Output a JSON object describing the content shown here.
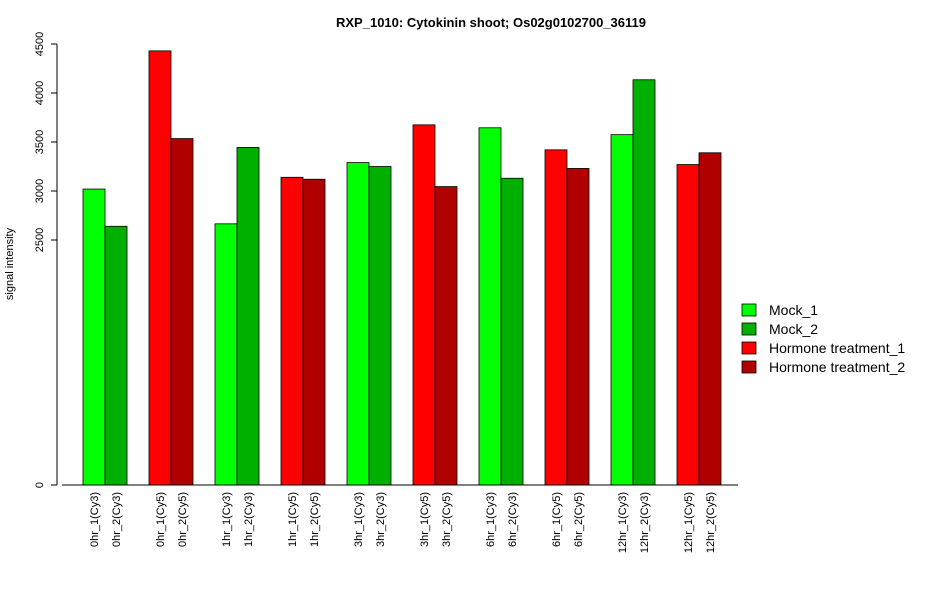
{
  "chart_data": {
    "type": "bar",
    "title": "RXP_1010: Cytokinin shoot; Os02g0102700_36119",
    "xlabel": "",
    "ylabel": "signal intensity",
    "y_ticks": [
      0,
      2500,
      3000,
      3500,
      4000,
      4500
    ],
    "y_tick_labels": [
      "0",
      "2500",
      "3000",
      "3500",
      "4000",
      "4500"
    ],
    "ylim": [
      0,
      4500
    ],
    "grid": false,
    "legend_position": "right",
    "colors": {
      "Mock_1": "#00ff00",
      "Mock_2": "#00b000",
      "Hormone treatment_1": "#ff0000",
      "Hormone treatment_2": "#b00000"
    },
    "legend": [
      "Mock_1",
      "Mock_2",
      "Hormone treatment_1",
      "Hormone treatment_2"
    ],
    "groups": [
      {
        "bars": [
          {
            "label": "0hr_1(Cy3)",
            "value": 3020,
            "series": "Mock_1"
          },
          {
            "label": "0hr_2(Cy3)",
            "value": 2640,
            "series": "Mock_2"
          }
        ]
      },
      {
        "bars": [
          {
            "label": "0hr_1(Cy5)",
            "value": 4430,
            "series": "Hormone treatment_1"
          },
          {
            "label": "0hr_2(Cy5)",
            "value": 3535,
            "series": "Hormone treatment_2"
          }
        ]
      },
      {
        "bars": [
          {
            "label": "1hr_1(Cy3)",
            "value": 2665,
            "series": "Mock_1"
          },
          {
            "label": "1hr_2(Cy3)",
            "value": 3445,
            "series": "Mock_2"
          }
        ]
      },
      {
        "bars": [
          {
            "label": "1hr_1(Cy5)",
            "value": 3140,
            "series": "Hormone treatment_1"
          },
          {
            "label": "1hr_2(Cy5)",
            "value": 3120,
            "series": "Hormone treatment_2"
          }
        ]
      },
      {
        "bars": [
          {
            "label": "3hr_1(Cy3)",
            "value": 3290,
            "series": "Mock_1"
          },
          {
            "label": "3hr_2(Cy3)",
            "value": 3250,
            "series": "Mock_2"
          }
        ]
      },
      {
        "bars": [
          {
            "label": "3hr_1(Cy5)",
            "value": 3675,
            "series": "Hormone treatment_1"
          },
          {
            "label": "3hr_2(Cy5)",
            "value": 3045,
            "series": "Hormone treatment_2"
          }
        ]
      },
      {
        "bars": [
          {
            "label": "6hr_1(Cy3)",
            "value": 3645,
            "series": "Mock_1"
          },
          {
            "label": "6hr_2(Cy3)",
            "value": 3130,
            "series": "Mock_2"
          }
        ]
      },
      {
        "bars": [
          {
            "label": "6hr_1(Cy5)",
            "value": 3420,
            "series": "Hormone treatment_1"
          },
          {
            "label": "6hr_2(Cy5)",
            "value": 3230,
            "series": "Hormone treatment_2"
          }
        ]
      },
      {
        "bars": [
          {
            "label": "12hr_1(Cy3)",
            "value": 3575,
            "series": "Mock_1"
          },
          {
            "label": "12hr_2(Cy3)",
            "value": 4135,
            "series": "Mock_2"
          }
        ]
      },
      {
        "bars": [
          {
            "label": "12hr_1(Cy5)",
            "value": 3270,
            "series": "Hormone treatment_1"
          },
          {
            "label": "12hr_2(Cy5)",
            "value": 3390,
            "series": "Hormone treatment_2"
          }
        ]
      }
    ]
  }
}
